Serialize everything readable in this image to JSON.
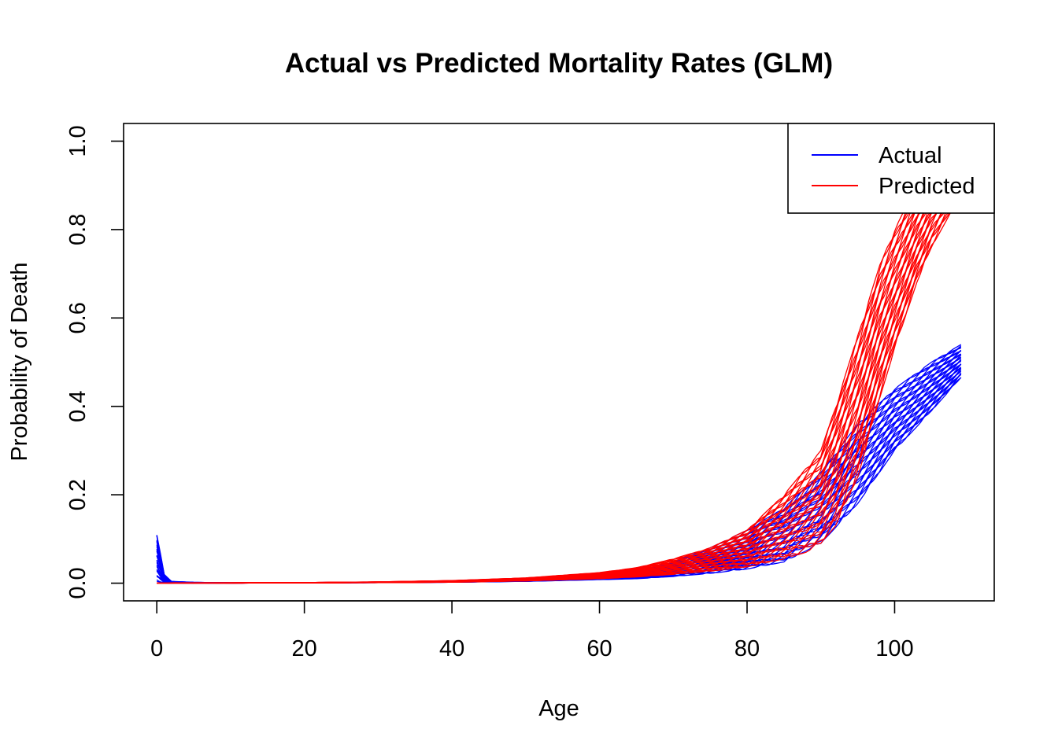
{
  "chart_data": {
    "type": "line",
    "title": "Actual vs Predicted Mortality Rates (GLM)",
    "xlabel": "Age",
    "ylabel": "Probability of Death",
    "xlim": [
      -4.5,
      113.5
    ],
    "ylim": [
      -0.04,
      1.04
    ],
    "x_ticks": [
      0,
      20,
      40,
      60,
      80,
      100
    ],
    "y_ticks": [
      0.0,
      0.2,
      0.4,
      0.6,
      0.8,
      1.0
    ],
    "x_tick_labels": [
      "0",
      "20",
      "40",
      "60",
      "80",
      "100"
    ],
    "y_tick_labels": [
      "0.0",
      "0.2",
      "0.4",
      "0.6",
      "0.8",
      "1.0"
    ],
    "grid": false,
    "legend_position": "top-right",
    "colors": {
      "actual": "#0000ff",
      "predicted": "#ff0000"
    },
    "series": [
      {
        "name": "Actual",
        "color": "#0000ff",
        "x": [
          0,
          1,
          2,
          5,
          10,
          20,
          30,
          40,
          50,
          60,
          65,
          70,
          75,
          80,
          85,
          90,
          95,
          100,
          105,
          109
        ],
        "upper": [
          0.112,
          0.02,
          0.004,
          0.002,
          0.001,
          0.0015,
          0.0025,
          0.004,
          0.008,
          0.016,
          0.025,
          0.048,
          0.08,
          0.12,
          0.17,
          0.25,
          0.36,
          0.44,
          0.5,
          0.54
        ],
        "lower": [
          0.0,
          0.0,
          0.0,
          0.0,
          0.0,
          0.0005,
          0.001,
          0.002,
          0.004,
          0.008,
          0.01,
          0.015,
          0.022,
          0.032,
          0.048,
          0.09,
          0.18,
          0.3,
          0.39,
          0.465
        ]
      },
      {
        "name": "Predicted",
        "color": "#ff0000",
        "x": [
          0,
          10,
          20,
          30,
          40,
          50,
          60,
          65,
          70,
          75,
          80,
          85,
          88,
          90,
          92,
          95,
          98,
          100,
          103,
          105,
          107,
          109
        ],
        "upper": [
          0.0008,
          0.001,
          0.0015,
          0.003,
          0.006,
          0.012,
          0.024,
          0.035,
          0.055,
          0.08,
          0.12,
          0.2,
          0.26,
          0.3,
          0.4,
          0.56,
          0.72,
          0.8,
          0.9,
          0.96,
          1.0,
          1.0
        ],
        "lower": [
          0.0,
          0.0,
          0.0005,
          0.001,
          0.002,
          0.005,
          0.01,
          0.014,
          0.02,
          0.027,
          0.037,
          0.055,
          0.07,
          0.09,
          0.13,
          0.24,
          0.42,
          0.53,
          0.68,
          0.76,
          0.82,
          0.87
        ]
      }
    ]
  }
}
